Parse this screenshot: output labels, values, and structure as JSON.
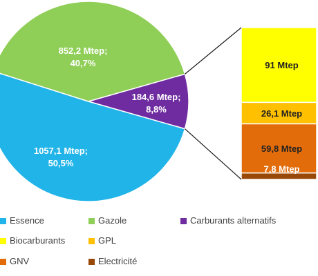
{
  "chart_data": [
    {
      "type": "pie",
      "categories": [
        "Essence",
        "Gazole",
        "Carburants alternatifs"
      ],
      "values": [
        1057.1,
        852.2,
        184.6
      ],
      "percent": [
        50.5,
        40.7,
        8.8
      ],
      "labels": [
        "1057,1 Mtep;\n50,5%",
        "852,2 Mtep;\n40,7%",
        "184,6 Mtep;\n8,8%"
      ],
      "colors": [
        "#21b4e8",
        "#8fce57",
        "#6f2ca0"
      ]
    },
    {
      "type": "bar",
      "stacked": true,
      "categories": [
        "Biocarburants",
        "GPL",
        "GNV",
        "Electricité"
      ],
      "values": [
        91,
        26.1,
        59.8,
        7.8
      ],
      "labels": [
        "91 Mtep",
        "26,1 Mtep",
        "59,8 Mtep",
        "7,8 Mtep"
      ],
      "colors": [
        "#ffff00",
        "#ffc000",
        "#e36c0a",
        "#984807"
      ]
    }
  ],
  "legend": {
    "placement": "bottom",
    "items": [
      {
        "label": "Essence",
        "color": "#21b4e8"
      },
      {
        "label": "Gazole",
        "color": "#8fce57"
      },
      {
        "label": "Carburants alternatifs",
        "color": "#6f2ca0"
      },
      {
        "label": "Biocarburants",
        "color": "#ffff00"
      },
      {
        "label": "GPL",
        "color": "#ffc000"
      },
      {
        "label": "GNV",
        "color": "#e36c0a"
      },
      {
        "label": "Electricité",
        "color": "#984807"
      }
    ]
  }
}
